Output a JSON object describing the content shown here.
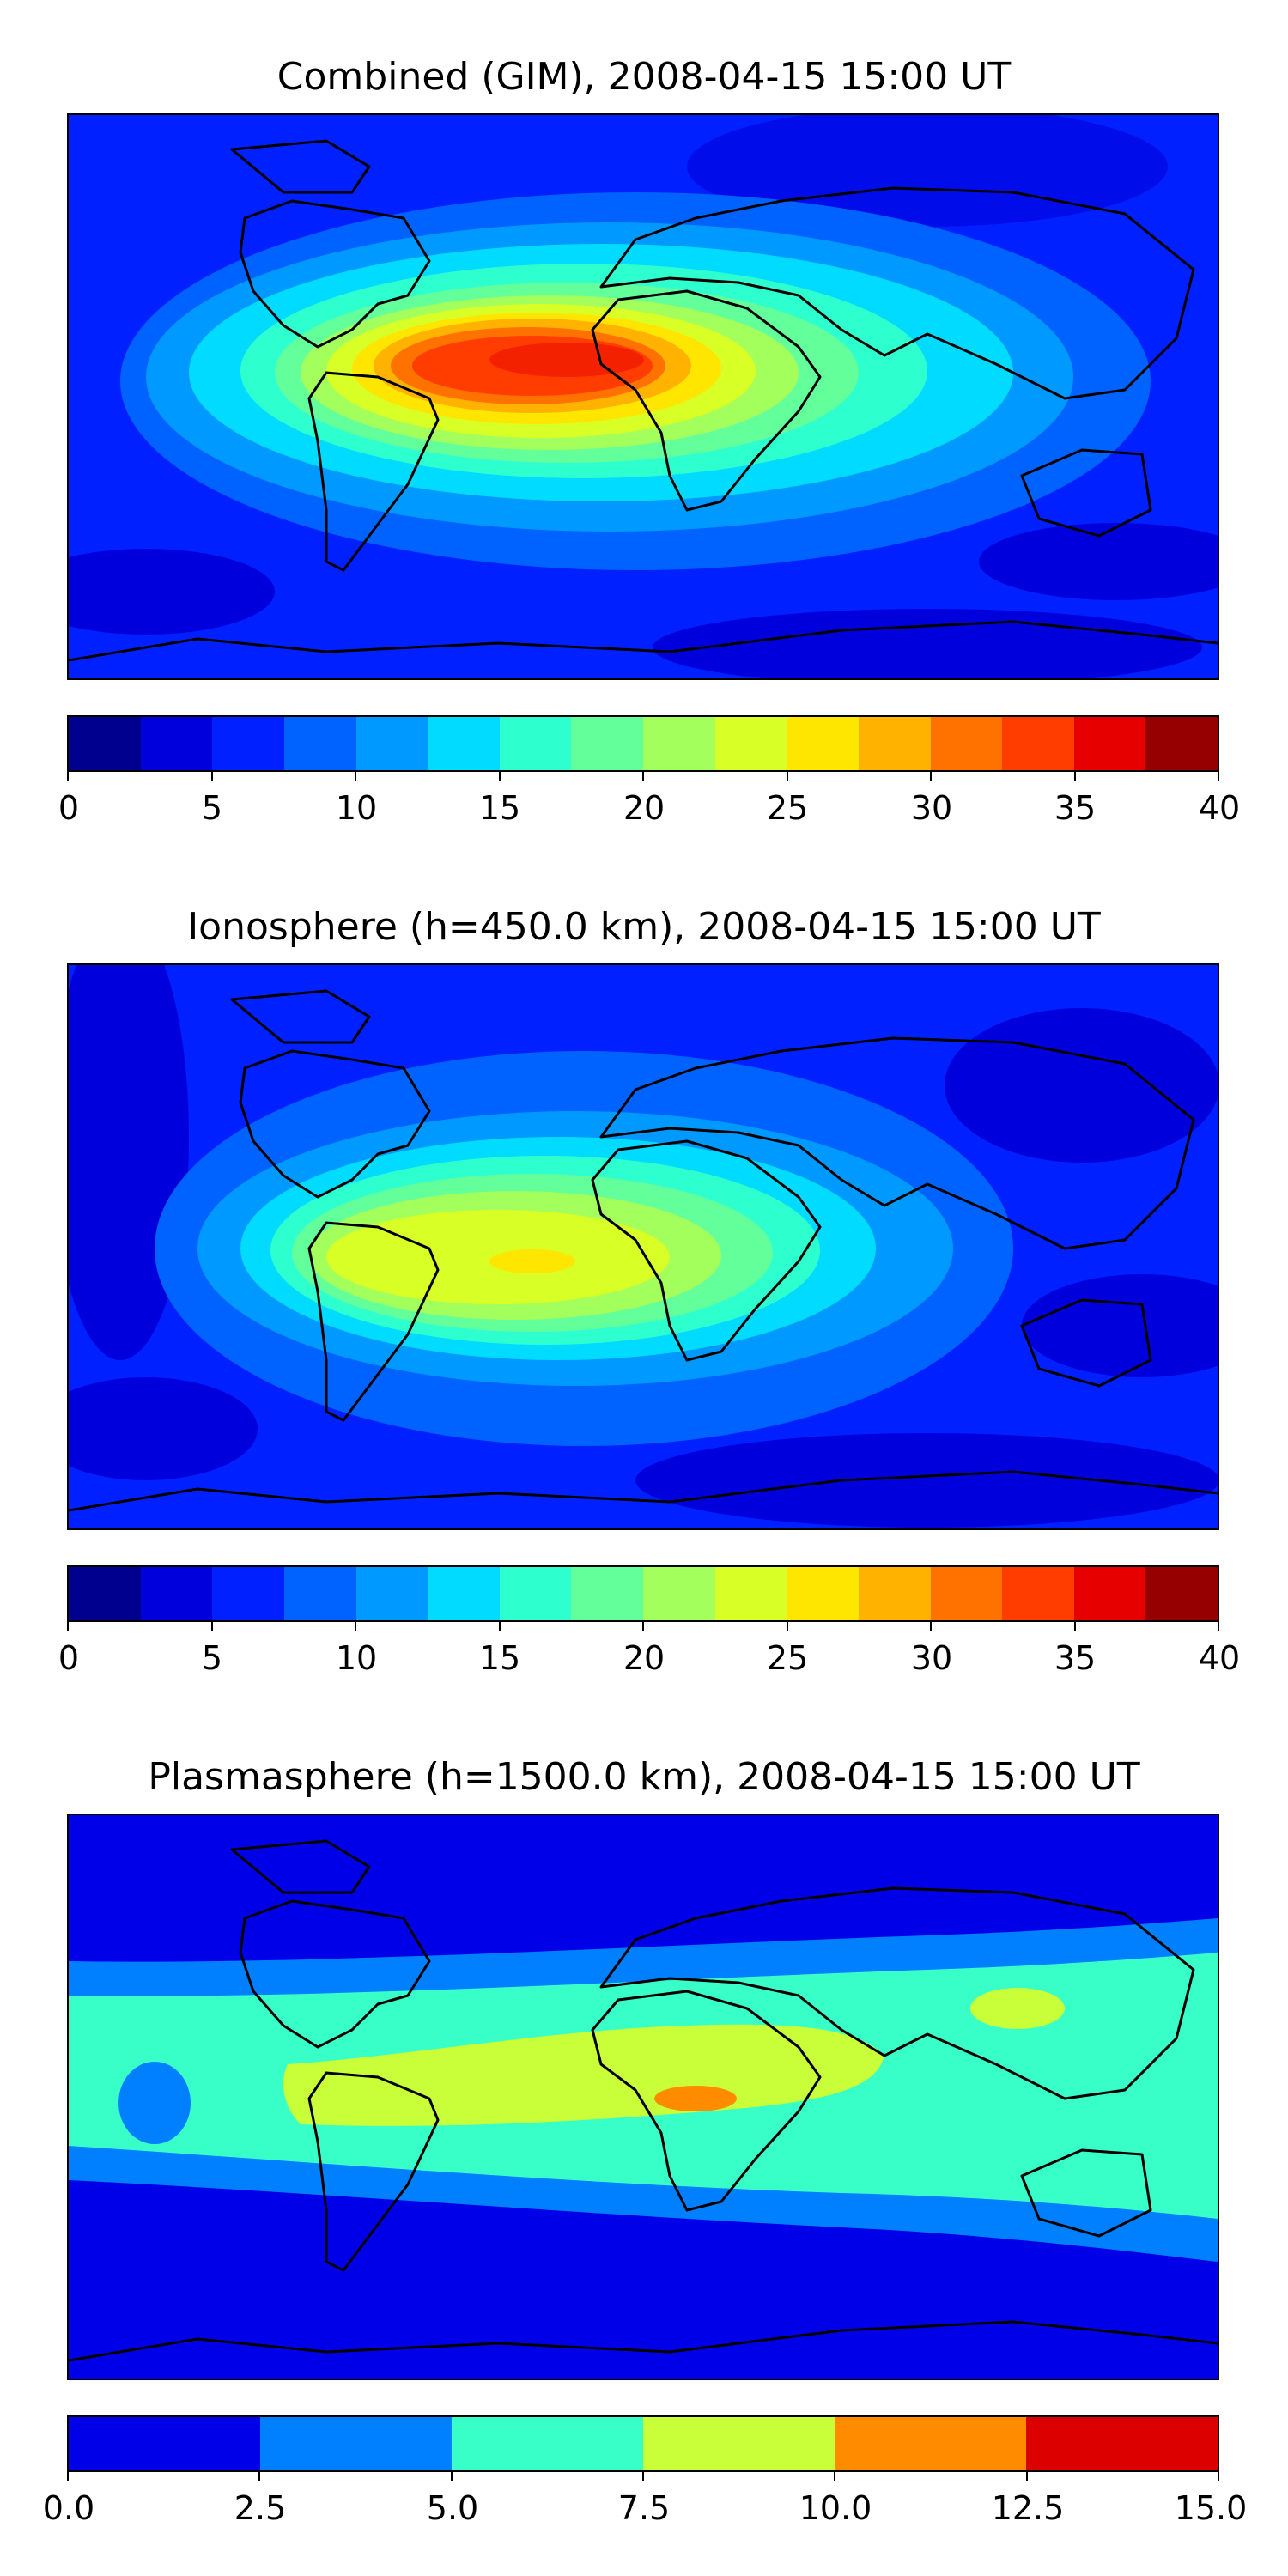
{
  "panels": [
    {
      "id": "combined",
      "title": "Combined (GIM), 2008-04-15 15:00 UT",
      "colorbar": {
        "colors": [
          "#00008f",
          "#0000dc",
          "#0020ff",
          "#0062ff",
          "#0099ff",
          "#00dbff",
          "#2effcf",
          "#62ff9b",
          "#a3ff5b",
          "#d8ff26",
          "#ffe600",
          "#ffb300",
          "#ff7200",
          "#ff3d00",
          "#e60000",
          "#960000"
        ],
        "tick_labels": [
          "0",
          "5",
          "10",
          "15",
          "20",
          "25",
          "30",
          "35",
          "40"
        ]
      }
    },
    {
      "id": "ionosphere",
      "title": "Ionosphere  (h=450.0 km), 2008-04-15 15:00 UT",
      "colorbar": {
        "colors": [
          "#00008f",
          "#0000dc",
          "#0020ff",
          "#0062ff",
          "#0099ff",
          "#00dbff",
          "#2effcf",
          "#62ff9b",
          "#a3ff5b",
          "#d8ff26",
          "#ffe600",
          "#ffb300",
          "#ff7200",
          "#ff3d00",
          "#e60000",
          "#960000"
        ],
        "tick_labels": [
          "0",
          "5",
          "10",
          "15",
          "20",
          "25",
          "30",
          "35",
          "40"
        ]
      }
    },
    {
      "id": "plasmasphere",
      "title": "Plasmasphere (h=1500.0 km), 2008-04-15 15:00 UT",
      "colorbar": {
        "colors": [
          "#0000e8",
          "#0080ff",
          "#38ffc8",
          "#c8ff38",
          "#ff8c00",
          "#dd0000"
        ],
        "tick_labels": [
          "0.0",
          "2.5",
          "5.0",
          "7.5",
          "10.0",
          "12.5",
          "15.0"
        ]
      }
    }
  ]
}
